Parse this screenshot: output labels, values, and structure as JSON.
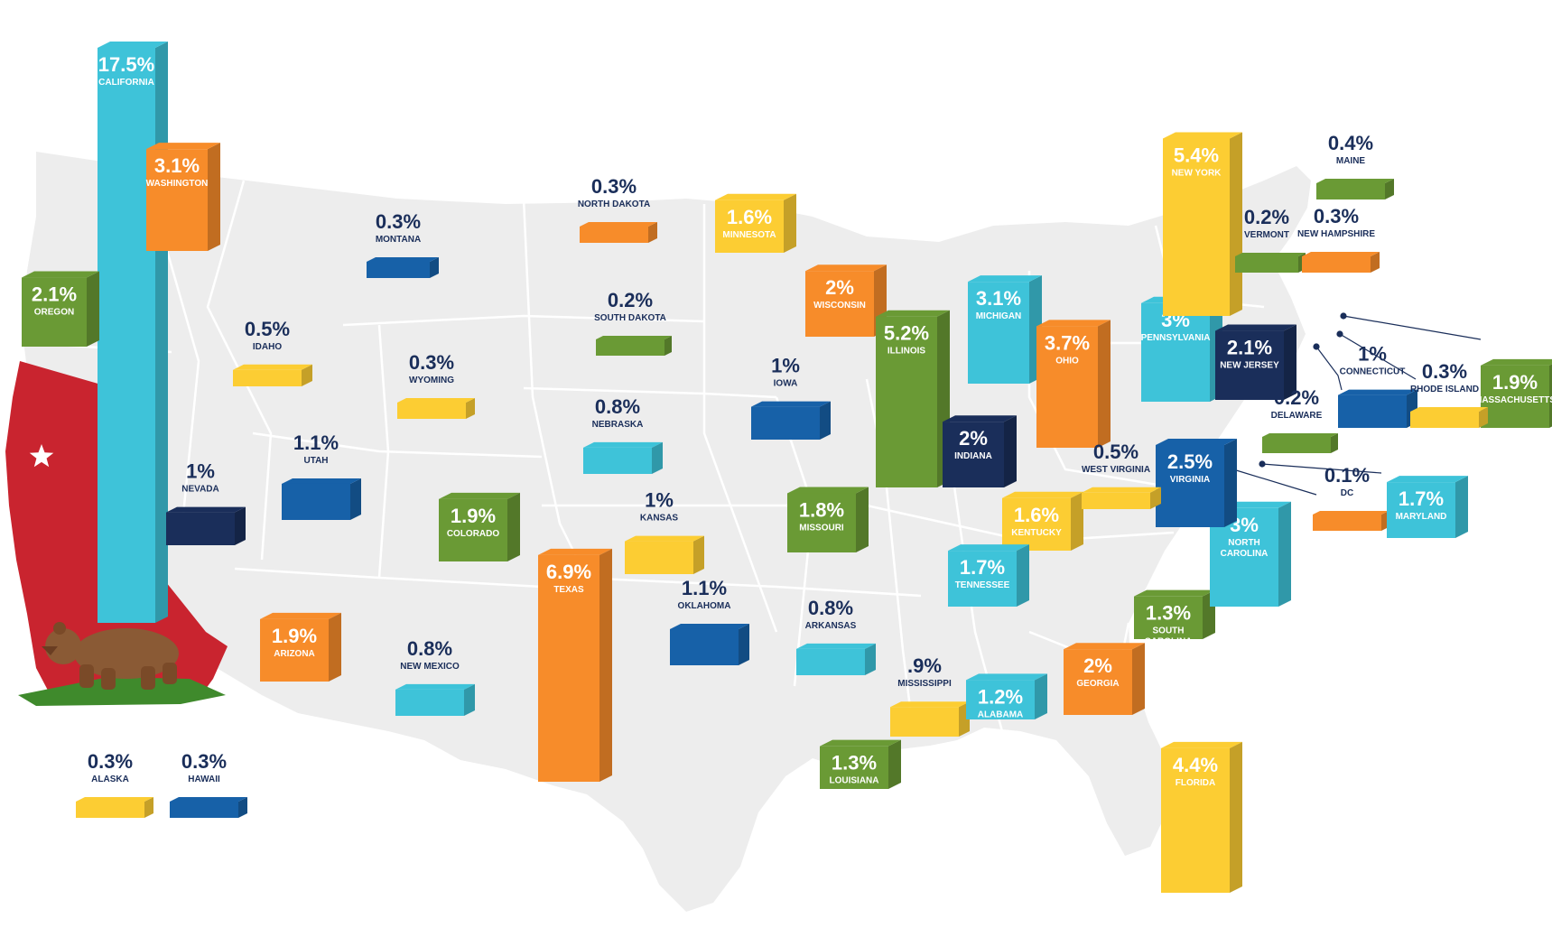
{
  "colors": {
    "yellow": "#fccd33",
    "green": "#6a9a35",
    "orange": "#f78c2a",
    "cyan": "#3ec3d9",
    "blue": "#1761a8",
    "navy": "#1a2e5a",
    "map": "#ededed",
    "flag_red": "#c9242f",
    "bear_brown": "#8a5a35",
    "grass": "#3f8a2c"
  },
  "chart_data": {
    "type": "bar",
    "units": "%",
    "states": [
      {
        "name": "CALIFORNIA",
        "label": "17.5%",
        "value": 17.5,
        "color": "cyan"
      },
      {
        "name": "WASHINGTON",
        "label": "3.1%",
        "value": 3.1,
        "color": "orange"
      },
      {
        "name": "OREGON",
        "label": "2.1%",
        "value": 2.1,
        "color": "green"
      },
      {
        "name": "MONTANA",
        "label": "0.3%",
        "value": 0.3,
        "color": "blue"
      },
      {
        "name": "IDAHO",
        "label": "0.5%",
        "value": 0.5,
        "color": "yellow"
      },
      {
        "name": "WYOMING",
        "label": "0.3%",
        "value": 0.3,
        "color": "yellow"
      },
      {
        "name": "NEVADA",
        "label": "1%",
        "value": 1,
        "color": "navy"
      },
      {
        "name": "UTAH",
        "label": "1.1%",
        "value": 1.1,
        "color": "blue"
      },
      {
        "name": "COLORADO",
        "label": "1.9%",
        "value": 1.9,
        "color": "green"
      },
      {
        "name": "ARIZONA",
        "label": "1.9%",
        "value": 1.9,
        "color": "orange"
      },
      {
        "name": "NEW MEXICO",
        "label": "0.8%",
        "value": 0.8,
        "color": "cyan"
      },
      {
        "name": "NORTH DAKOTA",
        "label": "0.3%",
        "value": 0.3,
        "color": "orange"
      },
      {
        "name": "SOUTH DAKOTA",
        "label": "0.2%",
        "value": 0.2,
        "color": "green"
      },
      {
        "name": "NEBRASKA",
        "label": "0.8%",
        "value": 0.8,
        "color": "cyan"
      },
      {
        "name": "KANSAS",
        "label": "1%",
        "value": 1,
        "color": "yellow"
      },
      {
        "name": "OKLAHOMA",
        "label": "1.1%",
        "value": 1.1,
        "color": "blue"
      },
      {
        "name": "TEXAS",
        "label": "6.9%",
        "value": 6.9,
        "color": "orange"
      },
      {
        "name": "MINNESOTA",
        "label": "1.6%",
        "value": 1.6,
        "color": "yellow"
      },
      {
        "name": "IOWA",
        "label": "1%",
        "value": 1,
        "color": "blue"
      },
      {
        "name": "MISSOURI",
        "label": "1.8%",
        "value": 1.8,
        "color": "green"
      },
      {
        "name": "ARKANSAS",
        "label": "0.8%",
        "value": 0.8,
        "color": "cyan"
      },
      {
        "name": "LOUISIANA",
        "label": "1.3%",
        "value": 1.3,
        "color": "green"
      },
      {
        "name": "WISCONSIN",
        "label": "2%",
        "value": 2,
        "color": "orange"
      },
      {
        "name": "ILLINOIS",
        "label": "5.2%",
        "value": 5.2,
        "color": "green"
      },
      {
        "name": "MICHIGAN",
        "label": "3.1%",
        "value": 3.1,
        "color": "cyan"
      },
      {
        "name": "INDIANA",
        "label": "2%",
        "value": 2,
        "color": "navy"
      },
      {
        "name": "OHIO",
        "label": "3.7%",
        "value": 3.7,
        "color": "orange"
      },
      {
        "name": "KENTUCKY",
        "label": "1.6%",
        "value": 1.6,
        "color": "yellow"
      },
      {
        "name": "TENNESSEE",
        "label": "1.7%",
        "value": 1.7,
        "color": "cyan"
      },
      {
        "name": "MISSISSIPPI",
        "label": ".9%",
        "value": 0.9,
        "color": "yellow"
      },
      {
        "name": "ALABAMA",
        "label": "1.2%",
        "value": 1.2,
        "color": "cyan"
      },
      {
        "name": "GEORGIA",
        "label": "2%",
        "value": 2,
        "color": "orange"
      },
      {
        "name": "FLORIDA",
        "label": "4.4%",
        "value": 4.4,
        "color": "yellow"
      },
      {
        "name": "SOUTH CAROLINA",
        "label": "1.3%",
        "value": 1.3,
        "color": "green"
      },
      {
        "name": "NORTH CAROLINA",
        "label": "3%",
        "value": 3,
        "color": "cyan"
      },
      {
        "name": "VIRGINIA",
        "label": "2.5%",
        "value": 2.5,
        "color": "blue"
      },
      {
        "name": "WEST VIRGINIA",
        "label": "0.5%",
        "value": 0.5,
        "color": "yellow"
      },
      {
        "name": "PENNSYLVANIA",
        "label": "3%",
        "value": 3,
        "color": "cyan"
      },
      {
        "name": "NEW YORK",
        "label": "5.4%",
        "value": 5.4,
        "color": "yellow"
      },
      {
        "name": "NEW JERSEY",
        "label": "2.1%",
        "value": 2.1,
        "color": "navy"
      },
      {
        "name": "VERMONT",
        "label": "0.2%",
        "value": 0.2,
        "color": "green"
      },
      {
        "name": "NEW HAMPSHIRE",
        "label": "0.3%",
        "value": 0.3,
        "color": "orange"
      },
      {
        "name": "MAINE",
        "label": "0.4%",
        "value": 0.4,
        "color": "green"
      },
      {
        "name": "MASSACHUSETTS",
        "label": "1.9%",
        "value": 1.9,
        "color": "green"
      },
      {
        "name": "CONNECTICUT",
        "label": "1%",
        "value": 1,
        "color": "blue"
      },
      {
        "name": "RHODE ISLAND",
        "label": "0.3%",
        "value": 0.3,
        "color": "yellow"
      },
      {
        "name": "DELAWARE",
        "label": "0.2%",
        "value": 0.2,
        "color": "green"
      },
      {
        "name": "DC",
        "label": "0.1%",
        "value": 0.1,
        "color": "orange"
      },
      {
        "name": "MARYLAND",
        "label": "1.7%",
        "value": 1.7,
        "color": "cyan"
      },
      {
        "name": "ALASKA",
        "label": "0.3%",
        "value": 0.3,
        "color": "yellow"
      },
      {
        "name": "HAWAII",
        "label": "0.3%",
        "value": 0.3,
        "color": "blue"
      }
    ]
  }
}
